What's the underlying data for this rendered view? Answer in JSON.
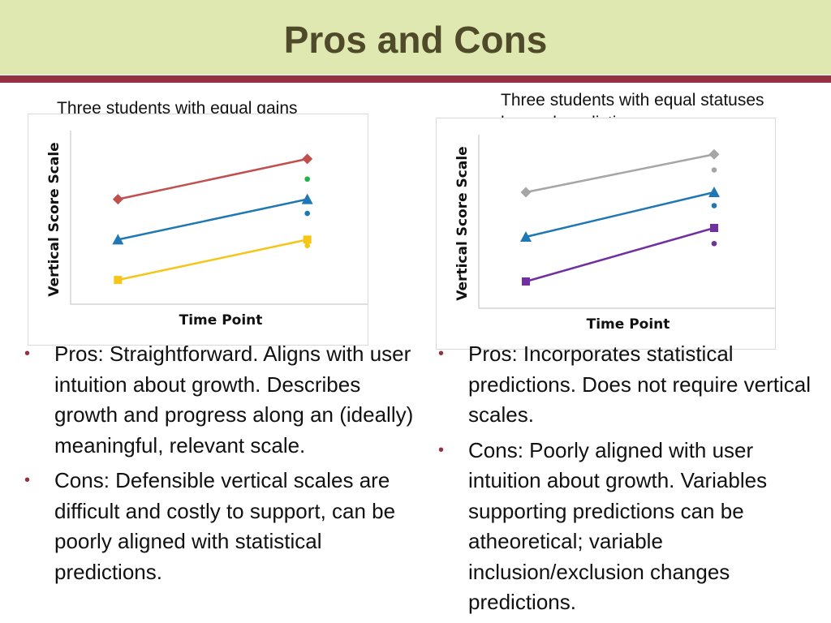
{
  "slide": {
    "title": "Pros and Cons",
    "accent_color": "#953140",
    "header_color": "#dfe8b0"
  },
  "left": {
    "caption": "Three students with equal gains",
    "bullets": [
      {
        "icon": "bullet-dot-icon",
        "text": "Pros: Straightforward. Aligns with user intuition about growth. Describes growth and progress along an (ideally) meaningful, relevant scale."
      },
      {
        "icon": "bullet-dot-icon",
        "text": "Cons: Defensible vertical scales are difficult and costly to support, can be poorly aligned with statistical predictions."
      }
    ]
  },
  "right": {
    "caption": "Three students with equal statuses beyond predictions.",
    "bullets": [
      {
        "icon": "bullet-dot-icon",
        "text": "Pros: Incorporates statistical predictions.  Does not require vertical scales."
      },
      {
        "icon": "bullet-dot-icon",
        "text": "Cons: Poorly aligned with user intuition about growth. Variables supporting predictions can be atheoretical; variable inclusion/exclusion changes predictions."
      }
    ]
  },
  "chart_data": [
    {
      "type": "line",
      "xlabel": "Time Point",
      "ylabel": "Vertical Score Scale",
      "x": [
        1,
        2
      ],
      "xlim": [
        0.75,
        2.25
      ],
      "ylim": [
        0,
        4.2
      ],
      "grid": false,
      "series": [
        {
          "color": "#c0504d",
          "marker": "diamond",
          "values": [
            2.6,
            3.6
          ],
          "point_marker": {
            "color": "#22b04a",
            "value": 3.1
          }
        },
        {
          "color": "#1f77b4",
          "marker": "triangle",
          "values": [
            1.6,
            2.6
          ],
          "point_marker": {
            "color": "#1f77b4",
            "value": 2.25
          }
        },
        {
          "color": "#f5c518",
          "marker": "square",
          "values": [
            0.6,
            1.6
          ],
          "point_marker": {
            "color": "#f5c518",
            "value": 1.45
          }
        }
      ]
    },
    {
      "type": "line",
      "xlabel": "Time Point",
      "ylabel": "Vertical Score Scale",
      "x": [
        1,
        2
      ],
      "xlim": [
        0.75,
        2.25
      ],
      "ylim": [
        0,
        3.8
      ],
      "grid": false,
      "series": [
        {
          "color": "#a6a6a6",
          "marker": "diamond",
          "values": [
            2.6,
            3.45
          ],
          "point_marker": {
            "color": "#a6a6a6",
            "value": 3.1
          }
        },
        {
          "color": "#1f77b4",
          "marker": "triangle",
          "values": [
            1.6,
            2.6
          ],
          "point_marker": {
            "color": "#1f77b4",
            "value": 2.3
          }
        },
        {
          "color": "#7030a0",
          "marker": "square",
          "values": [
            0.6,
            1.8
          ],
          "point_marker": {
            "color": "#7030a0",
            "value": 1.45
          }
        }
      ]
    }
  ]
}
